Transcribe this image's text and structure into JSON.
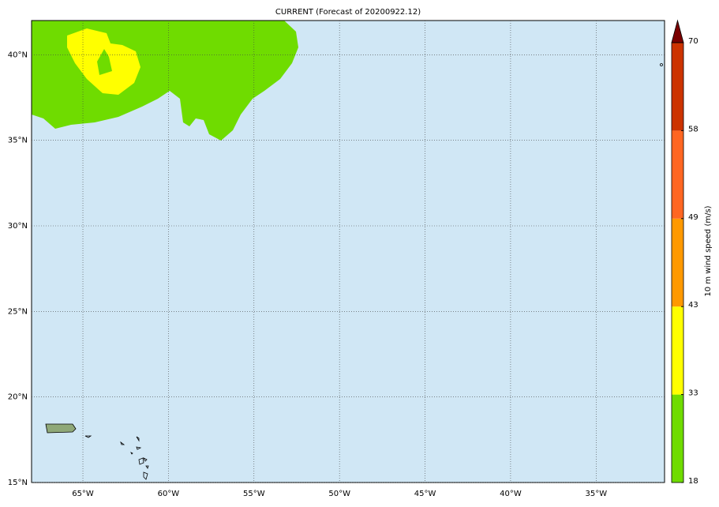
{
  "chart_data": {
    "type": "map",
    "title": "CURRENT (Forecast of 20200922.12)",
    "xlim": [
      -68,
      -31
    ],
    "ylim": [
      15,
      42
    ],
    "grid": true,
    "xticks": [
      {
        "value": -65,
        "label": "65°W"
      },
      {
        "value": -60,
        "label": "60°W"
      },
      {
        "value": -55,
        "label": "55°W"
      },
      {
        "value": -50,
        "label": "50°W"
      },
      {
        "value": -45,
        "label": "45°W"
      },
      {
        "value": -40,
        "label": "40°W"
      },
      {
        "value": -35,
        "label": "35°W"
      }
    ],
    "yticks": [
      {
        "value": 15,
        "label": "15°N"
      },
      {
        "value": 20,
        "label": "20°N"
      },
      {
        "value": 25,
        "label": "25°N"
      },
      {
        "value": 30,
        "label": "30°N"
      },
      {
        "value": 35,
        "label": "35°N"
      },
      {
        "value": 40,
        "label": "40°N"
      }
    ],
    "colorbar": {
      "label": "10 m wind speed (m/s)",
      "ticks": [
        18,
        33,
        43,
        49,
        58,
        70
      ],
      "colors": [
        "#6fdc00",
        "#ffff00",
        "#ff9900",
        "#ff6622",
        "#cc3300",
        "#7a0000"
      ]
    }
  }
}
